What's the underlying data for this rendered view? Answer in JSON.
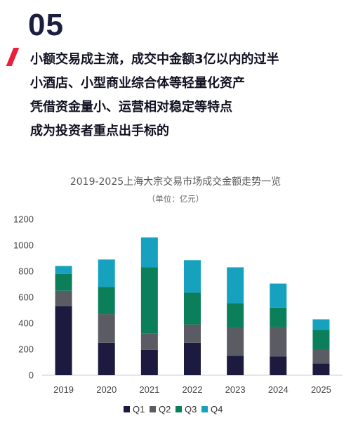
{
  "header": {
    "number": "05",
    "lines": [
      "小额交易成主流，成交中金额3亿以内的过半",
      "小酒店、小型商业综合体等轻量化资产",
      "凭借资金量小、运营相对稳定等特点",
      "成为投资者重点出手标的"
    ]
  },
  "colors": {
    "Q1": "#1c1b3f",
    "Q2": "#5a5b63",
    "Q3": "#0b7f5a",
    "Q4": "#16a2bf",
    "accent": "#e8203a"
  },
  "chart_data": {
    "type": "bar",
    "stacked": true,
    "title": "2019-2025上海大宗交易市场成交金额走势一览",
    "unit": "（单位：亿元）",
    "categories": [
      "2019",
      "2020",
      "2021",
      "2022",
      "2023",
      "2024",
      "2025"
    ],
    "series": [
      {
        "name": "Q1",
        "values": [
          530,
          250,
          195,
          250,
          150,
          145,
          90
        ]
      },
      {
        "name": "Q2",
        "values": [
          120,
          220,
          125,
          140,
          215,
          225,
          110
        ]
      },
      {
        "name": "Q3",
        "values": [
          130,
          210,
          510,
          245,
          190,
          150,
          150
        ]
      },
      {
        "name": "Q4",
        "values": [
          60,
          210,
          230,
          250,
          275,
          185,
          80
        ]
      }
    ],
    "ylim": [
      0,
      1200
    ],
    "yticks": [
      0,
      200,
      400,
      600,
      800,
      1000,
      1200
    ],
    "grid": false,
    "legend": "bottom"
  }
}
